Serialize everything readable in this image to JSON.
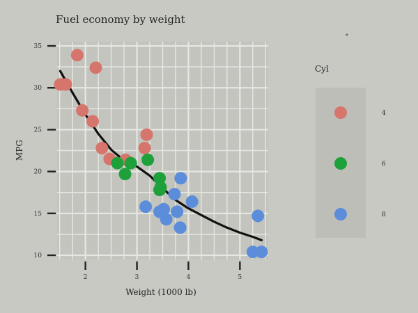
{
  "chart_data": {
    "type": "scatter",
    "title": "Fuel economy by weight",
    "xlabel": "Weight (1000 lb)",
    "ylabel": "MPG",
    "xlim": [
      1.45,
      5.55
    ],
    "ylim": [
      9.5,
      35.5
    ],
    "xticks": [
      2,
      3,
      4,
      5
    ],
    "yticks": [
      10,
      15,
      20,
      25,
      30,
      35
    ],
    "grid": true,
    "legend": {
      "title": "Cyl",
      "position": "right"
    },
    "series": [
      {
        "name": "4",
        "color": "#d6756c",
        "points": [
          {
            "x": 1.51,
            "y": 30.4
          },
          {
            "x": 1.62,
            "y": 30.4
          },
          {
            "x": 1.84,
            "y": 33.9
          },
          {
            "x": 1.94,
            "y": 27.3
          },
          {
            "x": 2.14,
            "y": 26.0
          },
          {
            "x": 2.2,
            "y": 32.4
          },
          {
            "x": 2.32,
            "y": 22.8
          },
          {
            "x": 2.47,
            "y": 21.5
          },
          {
            "x": 2.78,
            "y": 21.4
          },
          {
            "x": 3.15,
            "y": 22.8
          },
          {
            "x": 3.19,
            "y": 24.4
          }
        ]
      },
      {
        "name": "6",
        "color": "#1ea03a",
        "points": [
          {
            "x": 2.62,
            "y": 21.0
          },
          {
            "x": 2.77,
            "y": 19.7
          },
          {
            "x": 2.88,
            "y": 21.0
          },
          {
            "x": 3.21,
            "y": 21.4
          },
          {
            "x": 3.44,
            "y": 19.2
          },
          {
            "x": 3.44,
            "y": 17.8
          },
          {
            "x": 3.46,
            "y": 18.1
          }
        ]
      },
      {
        "name": "8",
        "color": "#5b8ddb",
        "points": [
          {
            "x": 3.17,
            "y": 15.8
          },
          {
            "x": 3.44,
            "y": 15.2
          },
          {
            "x": 3.52,
            "y": 15.5
          },
          {
            "x": 3.57,
            "y": 14.3
          },
          {
            "x": 3.73,
            "y": 17.3
          },
          {
            "x": 3.78,
            "y": 15.2
          },
          {
            "x": 3.84,
            "y": 13.3
          },
          {
            "x": 3.85,
            "y": 19.2
          },
          {
            "x": 4.07,
            "y": 16.4
          },
          {
            "x": 5.25,
            "y": 10.4
          },
          {
            "x": 5.35,
            "y": 14.7
          },
          {
            "x": 5.42,
            "y": 10.4
          }
        ]
      }
    ],
    "trend": {
      "color": "#111111",
      "points": [
        {
          "x": 1.51,
          "y": 32.0
        },
        {
          "x": 1.75,
          "y": 29.4
        },
        {
          "x": 2.0,
          "y": 26.8
        },
        {
          "x": 2.25,
          "y": 24.5
        },
        {
          "x": 2.5,
          "y": 22.6
        },
        {
          "x": 2.75,
          "y": 21.3
        },
        {
          "x": 3.0,
          "y": 20.6
        },
        {
          "x": 3.25,
          "y": 19.5
        },
        {
          "x": 3.5,
          "y": 18.0
        },
        {
          "x": 3.75,
          "y": 16.6
        },
        {
          "x": 4.0,
          "y": 15.6
        },
        {
          "x": 4.25,
          "y": 14.8
        },
        {
          "x": 4.5,
          "y": 14.0
        },
        {
          "x": 4.75,
          "y": 13.3
        },
        {
          "x": 5.0,
          "y": 12.7
        },
        {
          "x": 5.25,
          "y": 12.2
        },
        {
          "x": 5.42,
          "y": 11.8
        }
      ]
    }
  }
}
